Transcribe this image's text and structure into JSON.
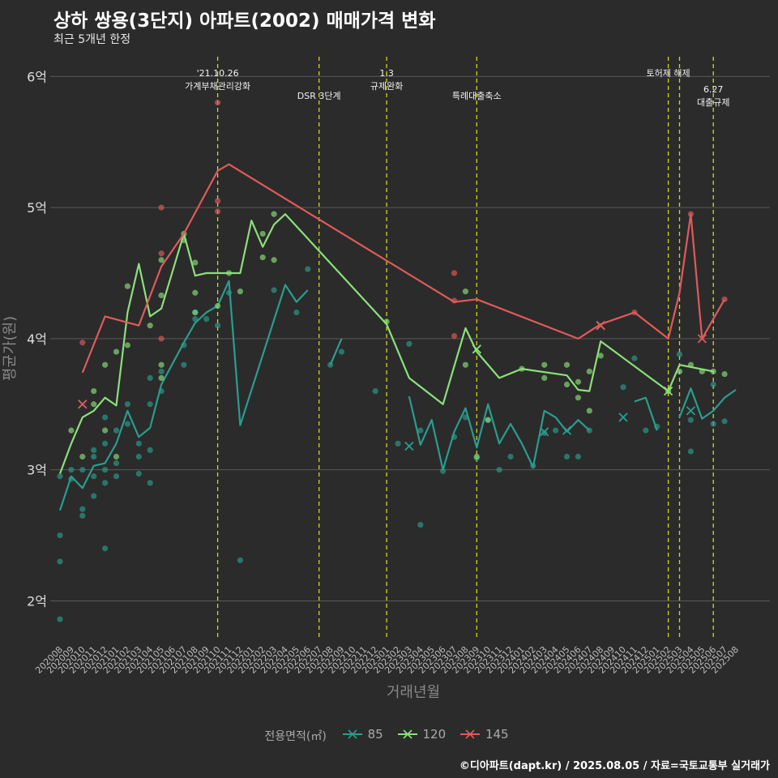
{
  "title": "상하 쌍용(3단지) 아파트(2002) 매매가격 변화",
  "subtitle": "최근 5개년 한정",
  "caption": "©디아파트(dapt.kr) / 2025.08.05 / 자료=국토교통부 실거래가",
  "colors": {
    "background": "#2b2b2b",
    "grid": "#5a5a5a",
    "event_line": "#d4d41e",
    "85": "#2a9d8f",
    "120": "#8be07a",
    "145": "#e05a5a"
  },
  "chart_data": {
    "type": "line",
    "xlabel": "거래년월",
    "ylabel": "평균가(원)",
    "y_ticks": [
      {
        "value": 2,
        "label": "2억"
      },
      {
        "value": 3,
        "label": "3억"
      },
      {
        "value": 4,
        "label": "4억"
      },
      {
        "value": 5,
        "label": "5억"
      },
      {
        "value": 6,
        "label": "6억"
      }
    ],
    "ylim": [
      1.7,
      6.15
    ],
    "x_categories": [
      "202008",
      "202009",
      "202010",
      "202011",
      "202012",
      "202101",
      "202102",
      "202103",
      "202104",
      "202105",
      "202106",
      "202107",
      "202108",
      "202109",
      "202110",
      "202111",
      "202112",
      "202201",
      "202202",
      "202203",
      "202204",
      "202205",
      "202206",
      "202207",
      "202208",
      "202209",
      "202210",
      "202211",
      "202212",
      "202301",
      "202302",
      "202303",
      "202304",
      "202305",
      "202306",
      "202307",
      "202308",
      "202309",
      "202310",
      "202311",
      "202312",
      "202401",
      "202402",
      "202403",
      "202404",
      "202405",
      "202406",
      "202407",
      "202408",
      "202409",
      "202410",
      "202411",
      "202412",
      "202501",
      "202502",
      "202503",
      "202504",
      "202505",
      "202506",
      "202507",
      "202508"
    ],
    "legend_title": "전용면적(㎡)",
    "grid": true,
    "legend_position": "bottom",
    "events": [
      {
        "x": "202110",
        "label": "'21.10.26\n가계부채관리강화",
        "level": 0
      },
      {
        "x": "202207",
        "label": "DSR 3단계",
        "level": 1
      },
      {
        "x": "202301",
        "label": "1.3\n규제완화",
        "level": 0
      },
      {
        "x": "202309",
        "label": "특례대출축소",
        "level": 1
      },
      {
        "x": "202502",
        "label": "토허제 해제",
        "level": 0
      },
      {
        "x": "202503",
        "label": "",
        "level": 0
      },
      {
        "x": "202506",
        "label": "6.27\n대출규제",
        "level": 2
      }
    ],
    "series": [
      {
        "name": "85",
        "line": [
          [
            "202008",
            2.69
          ],
          [
            "202009",
            2.95
          ],
          [
            "202010",
            2.86
          ],
          [
            "202011",
            3.03
          ],
          [
            "202012",
            3.05
          ],
          [
            "202101",
            3.2
          ],
          [
            "202102",
            3.45
          ],
          [
            "202103",
            3.25
          ],
          [
            "202104",
            3.32
          ],
          [
            "202105",
            3.65
          ],
          [
            "202107",
            3.97
          ],
          [
            "202108",
            4.12
          ],
          [
            "202109",
            4.2
          ],
          [
            "202110",
            4.25
          ],
          [
            "202111",
            4.44
          ],
          [
            "202112",
            3.34
          ],
          [
            "202204",
            4.41
          ],
          [
            "202205",
            4.28
          ],
          [
            "202206",
            4.37
          ],
          null,
          [
            "202208",
            3.8
          ],
          [
            "202209",
            4.0
          ],
          null,
          [
            "202303",
            3.56
          ],
          [
            "202304",
            3.19
          ],
          [
            "202305",
            3.38
          ],
          [
            "202306",
            3.0
          ],
          [
            "202307",
            3.29
          ],
          [
            "202308",
            3.47
          ],
          [
            "202309",
            3.17
          ],
          [
            "202310",
            3.5
          ],
          [
            "202311",
            3.2
          ],
          [
            "202312",
            3.35
          ],
          [
            "202401",
            3.2
          ],
          [
            "202402",
            3.02
          ],
          [
            "202403",
            3.45
          ],
          [
            "202404",
            3.4
          ],
          [
            "202405",
            3.29
          ],
          [
            "202406",
            3.38
          ],
          [
            "202407",
            3.3
          ],
          null,
          [
            "202411",
            3.52
          ],
          [
            "202412",
            3.55
          ],
          [
            "202501",
            3.3
          ],
          null,
          [
            "202503",
            3.4
          ],
          [
            "202504",
            3.62
          ],
          [
            "202505",
            3.39
          ],
          [
            "202506",
            3.45
          ],
          [
            "202507",
            3.55
          ],
          [
            "202508",
            3.61
          ]
        ],
        "points": [
          [
            "202008",
            2.5
          ],
          [
            "202008",
            2.3
          ],
          [
            "202008",
            1.86
          ],
          [
            "202008",
            2.95
          ],
          [
            "202009",
            3.0
          ],
          [
            "202009",
            2.93
          ],
          [
            "202010",
            2.65
          ],
          [
            "202010",
            2.7
          ],
          [
            "202010",
            3.0
          ],
          [
            "202011",
            2.8
          ],
          [
            "202011",
            3.1
          ],
          [
            "202011",
            3.15
          ],
          [
            "202011",
            2.95
          ],
          [
            "202012",
            3.4
          ],
          [
            "202012",
            3.2
          ],
          [
            "202012",
            3.0
          ],
          [
            "202012",
            2.4
          ],
          [
            "202012",
            2.9
          ],
          [
            "202101",
            3.3
          ],
          [
            "202101",
            3.05
          ],
          [
            "202101",
            2.95
          ],
          [
            "202102",
            3.5
          ],
          [
            "202102",
            3.35
          ],
          [
            "202103",
            3.2
          ],
          [
            "202103",
            3.1
          ],
          [
            "202103",
            2.97
          ],
          [
            "202104",
            3.7
          ],
          [
            "202104",
            3.5
          ],
          [
            "202104",
            3.15
          ],
          [
            "202104",
            2.9
          ],
          [
            "202105",
            3.75
          ],
          [
            "202105",
            3.6
          ],
          [
            "202107",
            3.95
          ],
          [
            "202107",
            3.8
          ],
          [
            "202108",
            4.15
          ],
          [
            "202108",
            4.2
          ],
          [
            "202109",
            4.15
          ],
          [
            "202110",
            4.1
          ],
          [
            "202111",
            4.35
          ],
          [
            "202112",
            2.31
          ],
          [
            "202203",
            4.37
          ],
          [
            "202205",
            4.2
          ],
          [
            "202206",
            4.53
          ],
          [
            "202208",
            3.8
          ],
          [
            "202209",
            3.9
          ],
          [
            "202212",
            3.6
          ],
          [
            "202302",
            3.2
          ],
          [
            "202303",
            3.96
          ],
          [
            "202304",
            2.58
          ],
          [
            "202304",
            3.3
          ],
          [
            "202306",
            2.99
          ],
          [
            "202307",
            3.25
          ],
          [
            "202308",
            3.4
          ],
          [
            "202309",
            3.09
          ],
          [
            "202310",
            3.38
          ],
          [
            "202311",
            3.0
          ],
          [
            "202312",
            3.1
          ],
          [
            "202402",
            3.03
          ],
          [
            "202403",
            3.28
          ],
          [
            "202404",
            3.3
          ],
          [
            "202405",
            3.1
          ],
          [
            "202406",
            3.1
          ],
          [
            "202407",
            3.3
          ],
          [
            "202410",
            3.63
          ],
          [
            "202411",
            3.85
          ],
          [
            "202412",
            3.3
          ],
          [
            "202501",
            3.33
          ],
          [
            "202503",
            3.88
          ],
          [
            "202504",
            3.14
          ],
          [
            "202504",
            3.38
          ],
          [
            "202506",
            3.35
          ],
          [
            "202506",
            3.65
          ],
          [
            "202507",
            3.37
          ]
        ],
        "crosses": [
          [
            "202010",
            3.5
          ],
          [
            "202303",
            3.18
          ],
          [
            "202403",
            3.29
          ],
          [
            "202405",
            3.3
          ],
          [
            "202410",
            3.4
          ],
          [
            "202504",
            3.45
          ]
        ]
      },
      {
        "name": "120",
        "line": [
          [
            "202008",
            2.97
          ],
          [
            "202009",
            3.2
          ],
          [
            "202010",
            3.4
          ],
          [
            "202011",
            3.45
          ],
          [
            "202012",
            3.55
          ],
          [
            "202101",
            3.49
          ],
          [
            "202102",
            4.2
          ],
          [
            "202103",
            4.57
          ],
          [
            "202104",
            4.17
          ],
          [
            "202105",
            4.23
          ],
          [
            "202107",
            4.8
          ],
          [
            "202108",
            4.48
          ],
          [
            "202109",
            4.5
          ],
          [
            "202111",
            4.5
          ],
          [
            "202112",
            4.5
          ],
          [
            "202201",
            4.9
          ],
          [
            "202202",
            4.7
          ],
          [
            "202203",
            4.87
          ],
          [
            "202204",
            4.95
          ],
          [
            "202301",
            4.11
          ],
          [
            "202303",
            3.7
          ],
          [
            "202306",
            3.5
          ],
          [
            "202308",
            4.08
          ],
          [
            "202309",
            3.9
          ],
          [
            "202311",
            3.7
          ],
          [
            "202401",
            3.77
          ],
          [
            "202405",
            3.72
          ],
          [
            "202406",
            3.61
          ],
          [
            "202407",
            3.6
          ],
          [
            "202408",
            3.98
          ],
          [
            "202502",
            3.6
          ],
          [
            "202503",
            3.8
          ],
          [
            "202506",
            3.75
          ]
        ],
        "points": [
          [
            "202009",
            3.3
          ],
          [
            "202010",
            3.1
          ],
          [
            "202011",
            3.5
          ],
          [
            "202011",
            3.6
          ],
          [
            "202012",
            3.8
          ],
          [
            "202012",
            3.3
          ],
          [
            "202101",
            3.9
          ],
          [
            "202101",
            3.1
          ],
          [
            "202102",
            4.4
          ],
          [
            "202102",
            3.95
          ],
          [
            "202104",
            4.1
          ],
          [
            "202105",
            4.6
          ],
          [
            "202105",
            4.33
          ],
          [
            "202105",
            3.8
          ],
          [
            "202105",
            3.7
          ],
          [
            "202107",
            4.8
          ],
          [
            "202107",
            4.75
          ],
          [
            "202108",
            4.58
          ],
          [
            "202108",
            4.35
          ],
          [
            "202108",
            4.2
          ],
          [
            "202110",
            4.25
          ],
          [
            "202111",
            4.5
          ],
          [
            "202112",
            4.36
          ],
          [
            "202202",
            4.8
          ],
          [
            "202202",
            4.62
          ],
          [
            "202203",
            4.95
          ],
          [
            "202203",
            4.6
          ],
          [
            "202301",
            4.13
          ],
          [
            "202308",
            3.8
          ],
          [
            "202308",
            4.36
          ],
          [
            "202309",
            3.1
          ],
          [
            "202310",
            3.38
          ],
          [
            "202401",
            3.77
          ],
          [
            "202403",
            3.7
          ],
          [
            "202403",
            3.8
          ],
          [
            "202405",
            3.8
          ],
          [
            "202405",
            3.65
          ],
          [
            "202406",
            3.55
          ],
          [
            "202406",
            3.67
          ],
          [
            "202407",
            3.45
          ],
          [
            "202407",
            3.75
          ],
          [
            "202408",
            3.87
          ],
          [
            "202502",
            3.6
          ],
          [
            "202503",
            3.75
          ],
          [
            "202504",
            3.8
          ],
          [
            "202505",
            3.75
          ],
          [
            "202506",
            3.75
          ],
          [
            "202507",
            3.73
          ]
        ],
        "crosses": [
          [
            "202309",
            3.92
          ],
          [
            "202408",
            4.1
          ],
          [
            "202502",
            3.6
          ]
        ]
      },
      {
        "name": "145",
        "line": [
          [
            "202010",
            3.74
          ],
          [
            "202012",
            4.17
          ],
          [
            "202103",
            4.1
          ],
          [
            "202105",
            4.55
          ],
          [
            "202107",
            4.8
          ],
          [
            "202110",
            5.28
          ],
          [
            "202111",
            5.33
          ],
          [
            "202307",
            4.28
          ],
          [
            "202309",
            4.3
          ],
          [
            "202406",
            4.0
          ],
          [
            "202408",
            4.11
          ],
          [
            "202411",
            4.2
          ],
          [
            "202502",
            4.0
          ],
          [
            "202503",
            4.35
          ],
          [
            "202504",
            4.95
          ],
          [
            "202505",
            4.0
          ],
          [
            "202507",
            4.3
          ]
        ],
        "points": [
          [
            "202010",
            3.97
          ],
          [
            "202105",
            5.0
          ],
          [
            "202105",
            4.65
          ],
          [
            "202105",
            4.0
          ],
          [
            "202110",
            5.8
          ],
          [
            "202110",
            5.05
          ],
          [
            "202110",
            4.97
          ],
          [
            "202307",
            4.5
          ],
          [
            "202307",
            4.29
          ],
          [
            "202307",
            4.02
          ],
          [
            "202411",
            4.2
          ],
          [
            "202504",
            4.95
          ],
          [
            "202507",
            4.3
          ]
        ],
        "crosses": [
          [
            "202010",
            3.5
          ],
          [
            "202408",
            4.1
          ],
          [
            "202505",
            4.0
          ]
        ]
      }
    ]
  }
}
